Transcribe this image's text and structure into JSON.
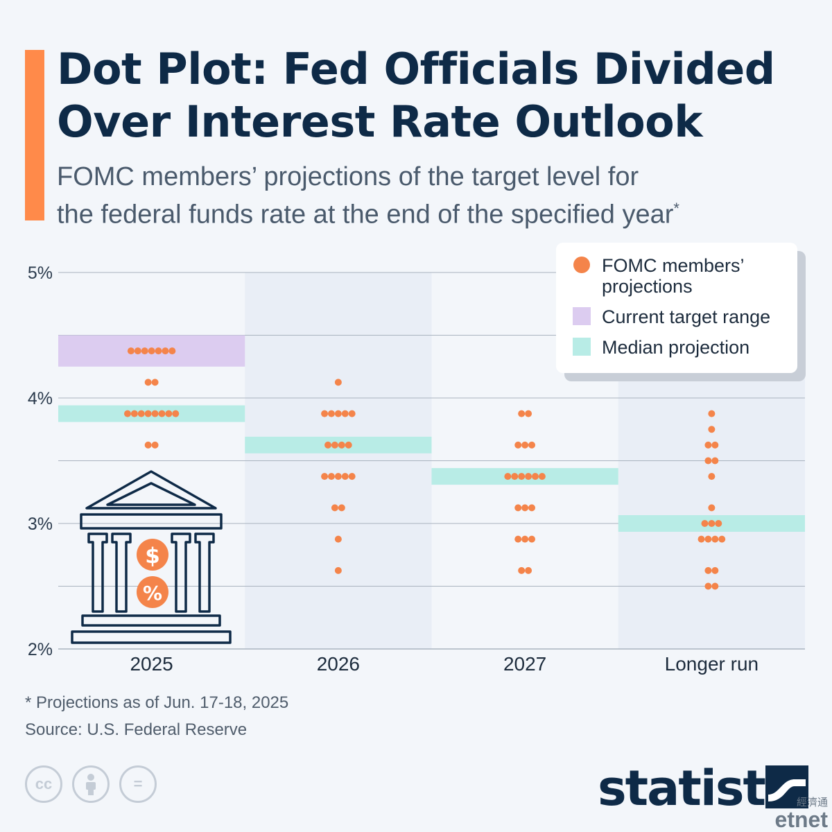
{
  "header": {
    "title_line1": "Dot Plot: Fed Officials Divided",
    "title_line2": "Over Interest Rate Outlook",
    "subtitle_line1": "FOMC members’ projections of the target level for",
    "subtitle_line2": "the federal funds rate at the end of the specified year",
    "subtitle_marker": "*"
  },
  "colors": {
    "accent": "#ff8a4a",
    "dot": "#f4844a",
    "current_range": "#dcccf0",
    "median": "#b8ece6",
    "band": "#e9eef6",
    "grid": "#a9b3bf",
    "icon": "#0e2a47"
  },
  "legend": {
    "items": [
      {
        "label_line1": "FOMC members’",
        "label_line2": "projections",
        "swatch": "dot"
      },
      {
        "label_line1": "Current target range",
        "label_line2": "",
        "swatch": "range"
      },
      {
        "label_line1": "Median projection",
        "label_line2": "",
        "swatch": "median"
      }
    ]
  },
  "chart_data": {
    "type": "scatter",
    "title": "Dot Plot: Fed Officials Divided Over Interest Rate Outlook",
    "ylabel": "",
    "ylim": [
      2,
      5
    ],
    "y_ticks": [
      2,
      3,
      4,
      5
    ],
    "y_tick_labels": [
      "2%",
      "3%",
      "4%",
      "5%"
    ],
    "categories": [
      "2025",
      "2026",
      "2027",
      "Longer run"
    ],
    "current_target_range": {
      "category": "2025",
      "low": 4.25,
      "high": 4.5
    },
    "median": [
      3.875,
      3.625,
      3.375,
      3.0
    ],
    "projections": [
      {
        "category": "2025",
        "points": [
          {
            "rate": 4.375,
            "count": 7
          },
          {
            "rate": 4.125,
            "count": 2
          },
          {
            "rate": 3.875,
            "count": 8
          },
          {
            "rate": 3.625,
            "count": 2
          }
        ]
      },
      {
        "category": "2026",
        "points": [
          {
            "rate": 4.125,
            "count": 1
          },
          {
            "rate": 3.875,
            "count": 5
          },
          {
            "rate": 3.625,
            "count": 4
          },
          {
            "rate": 3.375,
            "count": 5
          },
          {
            "rate": 3.125,
            "count": 2
          },
          {
            "rate": 2.875,
            "count": 1
          },
          {
            "rate": 2.625,
            "count": 1
          }
        ]
      },
      {
        "category": "2027",
        "points": [
          {
            "rate": 3.875,
            "count": 2
          },
          {
            "rate": 3.625,
            "count": 3
          },
          {
            "rate": 3.375,
            "count": 6
          },
          {
            "rate": 3.125,
            "count": 3
          },
          {
            "rate": 2.875,
            "count": 3
          },
          {
            "rate": 2.625,
            "count": 2
          }
        ]
      },
      {
        "category": "Longer run",
        "points": [
          {
            "rate": 3.875,
            "count": 1
          },
          {
            "rate": 3.75,
            "count": 1
          },
          {
            "rate": 3.625,
            "count": 2
          },
          {
            "rate": 3.5,
            "count": 2
          },
          {
            "rate": 3.375,
            "count": 1
          },
          {
            "rate": 3.125,
            "count": 1
          },
          {
            "rate": 3.0,
            "count": 3
          },
          {
            "rate": 2.875,
            "count": 4
          },
          {
            "rate": 2.625,
            "count": 2
          },
          {
            "rate": 2.5,
            "count": 2
          }
        ]
      }
    ],
    "grid": true,
    "legend_position": "top-right"
  },
  "icons": {
    "illustration": "bank-building-icon",
    "illustration_symbols": [
      "$",
      "%"
    ]
  },
  "footer": {
    "note": "* Projections as of Jun. 17-18, 2025",
    "source": "Source: U.S. Federal Reserve",
    "license_icons": [
      "cc-icon",
      "attribution-icon",
      "no-derivatives-icon"
    ],
    "cc_text": "cc",
    "nd_text": "=",
    "brand": "statista",
    "watermark_cn": "經濟通",
    "watermark_en": "etnet"
  }
}
